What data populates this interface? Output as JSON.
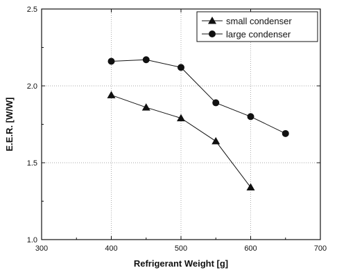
{
  "chart_data": {
    "type": "line",
    "title": "",
    "xlabel": "Refrigerant Weight [g]",
    "ylabel": "E.E.R. [W/W]",
    "xlim": [
      300,
      700
    ],
    "ylim": [
      1.0,
      2.5
    ],
    "xticks": [
      300,
      400,
      500,
      600,
      700
    ],
    "yticks": [
      1.0,
      1.5,
      2.0,
      2.5
    ],
    "xtick_labels": [
      "300",
      "400",
      "500",
      "600",
      "700"
    ],
    "ytick_labels": [
      "1.0",
      "1.5",
      "2.0",
      "2.5"
    ],
    "grid": true,
    "legend_position": "top-right",
    "series": [
      {
        "name": "small condenser",
        "marker": "triangle",
        "x": [
          400,
          450,
          500,
          550,
          600
        ],
        "y": [
          1.94,
          1.86,
          1.79,
          1.64,
          1.34
        ]
      },
      {
        "name": "large condenser",
        "marker": "circle",
        "x": [
          400,
          450,
          500,
          550,
          600,
          650
        ],
        "y": [
          2.16,
          2.17,
          2.12,
          1.89,
          1.8,
          1.69
        ]
      }
    ]
  }
}
